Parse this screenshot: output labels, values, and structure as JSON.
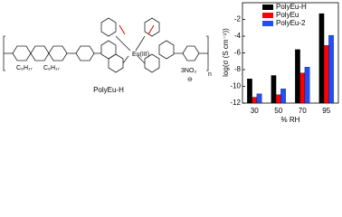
{
  "structure": {
    "name": "PolyEu-H",
    "alkyl_left": "C₈H₁₇",
    "alkyl_right": "C₈H₁₇",
    "metal": "Eu(III)",
    "counterion": "3NO₃",
    "charge": "⊖",
    "repeat": "n"
  },
  "chart_data": {
    "type": "bar",
    "categories": [
      "30",
      "50",
      "70",
      "95"
    ],
    "x_label": "% RH",
    "y_label": "log(σ (S cm⁻¹))",
    "series": [
      {
        "name": "PolyEu-H",
        "color": "#000000",
        "values": [
          -9.1,
          -8.7,
          -5.6,
          -1.3
        ]
      },
      {
        "name": "PolyEu",
        "color": "#ff0000",
        "values": [
          -11.3,
          -11.0,
          -8.4,
          -5.1
        ]
      },
      {
        "name": "PolyEu-2",
        "color": "#1f4fff",
        "values": [
          -10.9,
          -10.3,
          -7.7,
          -3.9
        ]
      }
    ],
    "ylim": [
      -12,
      0
    ],
    "yticks": [
      -12,
      -10,
      -8,
      -6,
      -4,
      -2
    ],
    "legend": "upper left"
  }
}
